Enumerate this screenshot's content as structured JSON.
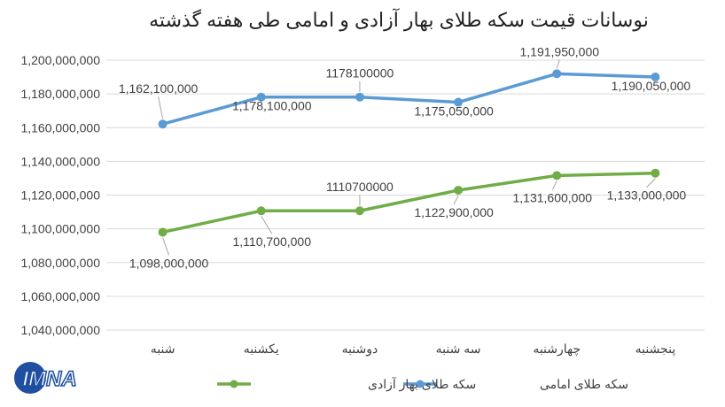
{
  "chart_data": {
    "type": "line",
    "title": "نوسانات قیمت سکه طلای بهار آزادی و امامی طی هفته گذشته",
    "categories": [
      "شنبه",
      "یکشنبه",
      "دوشنبه",
      "سه شنبه",
      "چهارشنبه",
      "پنجشنبه"
    ],
    "ylim": [
      1040000000,
      1200000000
    ],
    "yticks": [
      "1,040,000,000",
      "1,060,000,000",
      "1,080,000,000",
      "1,100,000,000",
      "1,120,000,000",
      "1,140,000,000",
      "1,160,000,000",
      "1,180,000,000",
      "1,200,000,000"
    ],
    "grid": true,
    "legend_position": "bottom",
    "series": [
      {
        "name": "سکه طلای امامی",
        "color": "#5b9bd5",
        "values": [
          1162100000,
          1178100000,
          1178100000,
          1175050000,
          1191950000,
          1190050000
        ],
        "labels": [
          "1,162,100,000",
          "1,178,100,000",
          "1178100000",
          "1,175,050,000",
          "1,191,950,000",
          "1,190,050,000"
        ]
      },
      {
        "name": "سکه طلای بهار آزادی",
        "color": "#70ad47",
        "values": [
          1098000000,
          1110700000,
          1110700000,
          1122900000,
          1131600000,
          1133000000
        ],
        "labels": [
          "1,098,000,000",
          "1,110,700,000",
          "1110700000",
          "1,122,900,000",
          "1,131,600,000",
          "1,133,000,000"
        ]
      }
    ]
  },
  "logo": {
    "text": "IMNA"
  }
}
